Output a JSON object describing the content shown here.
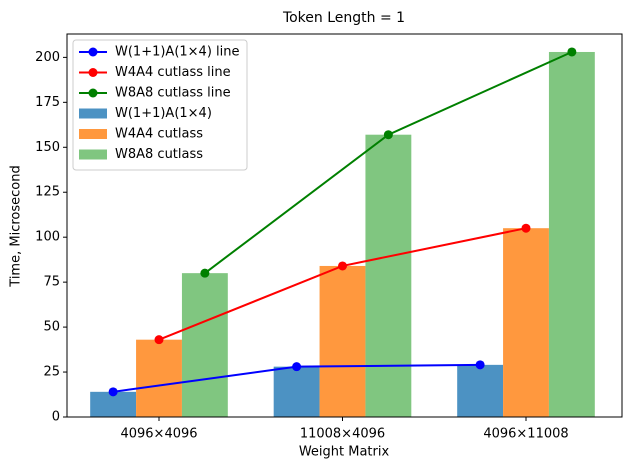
{
  "chart_data": {
    "type": "bar",
    "title": "Token Length = 1",
    "xlabel": "Weight Matrix",
    "ylabel": "Time, Microsecond",
    "categories": [
      "4096×4096",
      "11008×4096",
      "4096×11008"
    ],
    "series": [
      {
        "name": "W(1+1)A(1×4) line",
        "type": "line",
        "color": "#0000ff",
        "values": [
          14,
          28,
          29
        ]
      },
      {
        "name": "W4A4 cutlass line",
        "type": "line",
        "color": "#ff0000",
        "values": [
          43,
          84,
          105
        ]
      },
      {
        "name": "W8A8 cutlass line",
        "type": "line",
        "color": "#008000",
        "values": [
          80,
          157,
          203
        ]
      },
      {
        "name": "W(1+1)A(1×4)",
        "type": "bar",
        "color": "#4c92c3",
        "values": [
          14,
          28,
          29
        ]
      },
      {
        "name": "W4A4 cutlass",
        "type": "bar",
        "color": "#ff983e",
        "values": [
          43,
          84,
          105
        ]
      },
      {
        "name": "W8A8 cutlass",
        "type": "bar",
        "color": "#80c680",
        "values": [
          80,
          157,
          203
        ]
      }
    ],
    "ylim": [
      0,
      213
    ],
    "yticks": [
      0,
      25,
      50,
      75,
      100,
      125,
      150,
      175,
      200
    ],
    "legend": "upper left"
  }
}
